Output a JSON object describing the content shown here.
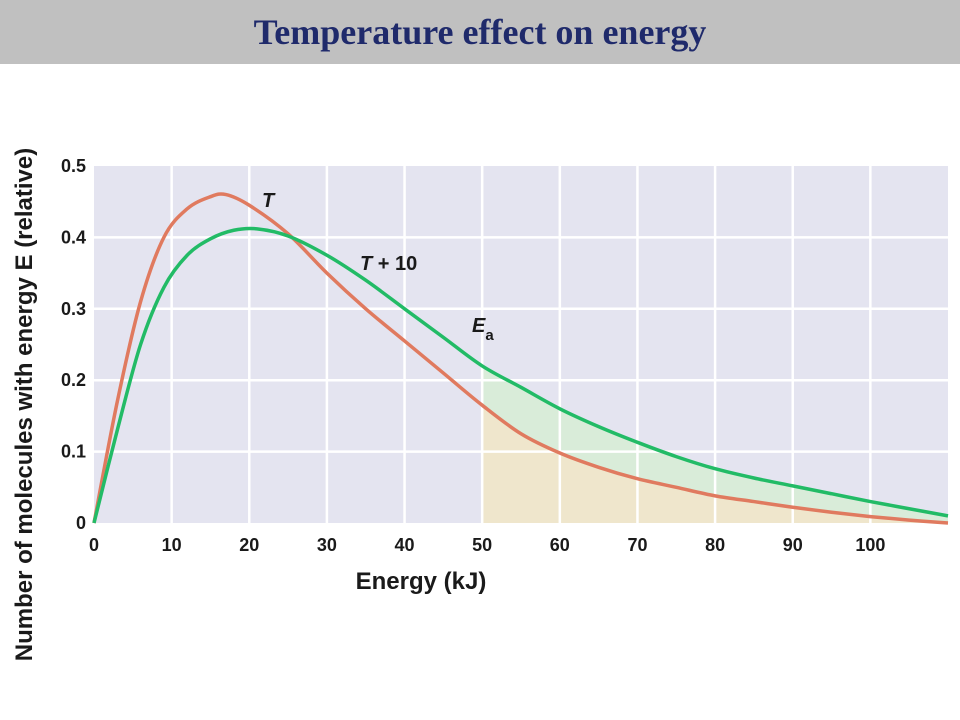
{
  "page_title": "Temperature effect on energy",
  "colors": {
    "plot_bg": "#e4e4f0",
    "grid": "#ffffff",
    "series_T": "#e07a5f",
    "series_T10": "#22bb66",
    "fill_under_T": "#efe6cc",
    "fill_between": "#d9ecd9",
    "title_text": "#1f2a6b",
    "title_bar": "#c0c0c0"
  },
  "chart_data": {
    "type": "line",
    "xlabel": "Energy (kJ)",
    "ylabel": "Number of molecules with energy E (relative)",
    "xlim": [
      0,
      110
    ],
    "ylim": [
      0,
      0.5
    ],
    "xticks": [
      "0",
      "10",
      "20",
      "30",
      "40",
      "50",
      "60",
      "70",
      "80",
      "90",
      "100"
    ],
    "yticks": [
      "0",
      "0.1",
      "0.2",
      "0.3",
      "0.4",
      "0.5"
    ],
    "grid": true,
    "activation_energy": {
      "label": "E",
      "subscript": "a",
      "x": 50
    },
    "series": [
      {
        "name": "T",
        "label_italic": "T",
        "label_rest": "",
        "points": [
          [
            0,
            0
          ],
          [
            3,
            0.17
          ],
          [
            6,
            0.31
          ],
          [
            9,
            0.4
          ],
          [
            12,
            0.44
          ],
          [
            15,
            0.457
          ],
          [
            17,
            0.46
          ],
          [
            20,
            0.445
          ],
          [
            25,
            0.405
          ],
          [
            30,
            0.35
          ],
          [
            35,
            0.3
          ],
          [
            40,
            0.255
          ],
          [
            45,
            0.21
          ],
          [
            50,
            0.165
          ],
          [
            55,
            0.125
          ],
          [
            60,
            0.098
          ],
          [
            65,
            0.078
          ],
          [
            70,
            0.062
          ],
          [
            75,
            0.05
          ],
          [
            80,
            0.038
          ],
          [
            85,
            0.03
          ],
          [
            90,
            0.022
          ],
          [
            95,
            0.015
          ],
          [
            100,
            0.009
          ],
          [
            105,
            0.004
          ],
          [
            110,
            0.0
          ]
        ]
      },
      {
        "name": "T + 10",
        "label_italic": "T",
        "label_rest": " + 10",
        "points": [
          [
            0,
            0
          ],
          [
            3,
            0.13
          ],
          [
            6,
            0.25
          ],
          [
            9,
            0.33
          ],
          [
            12,
            0.375
          ],
          [
            15,
            0.398
          ],
          [
            18,
            0.41
          ],
          [
            21,
            0.412
          ],
          [
            25,
            0.402
          ],
          [
            30,
            0.375
          ],
          [
            35,
            0.34
          ],
          [
            40,
            0.3
          ],
          [
            45,
            0.26
          ],
          [
            50,
            0.22
          ],
          [
            55,
            0.19
          ],
          [
            60,
            0.16
          ],
          [
            65,
            0.135
          ],
          [
            70,
            0.113
          ],
          [
            75,
            0.093
          ],
          [
            80,
            0.076
          ],
          [
            85,
            0.063
          ],
          [
            90,
            0.052
          ],
          [
            95,
            0.041
          ],
          [
            100,
            0.03
          ],
          [
            105,
            0.02
          ],
          [
            110,
            0.01
          ]
        ]
      }
    ]
  }
}
